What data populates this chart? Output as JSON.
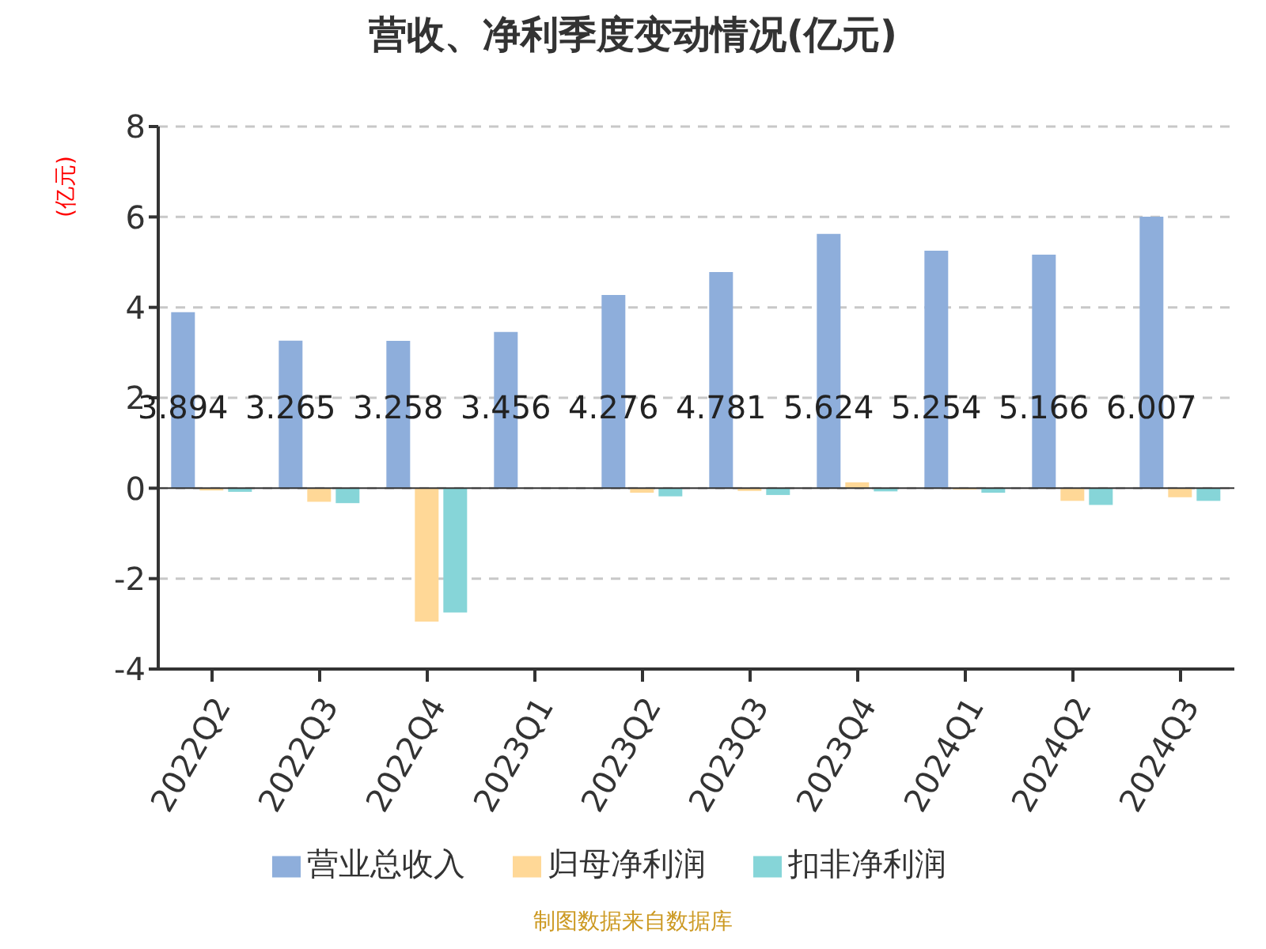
{
  "chart_data": {
    "type": "bar",
    "title": "营收、净利季度变动情况(亿元)",
    "ylabel": "(亿元)",
    "categories": [
      "2022Q2",
      "2022Q3",
      "2022Q4",
      "2023Q1",
      "2023Q2",
      "2023Q3",
      "2023Q4",
      "2024Q1",
      "2024Q2",
      "2024Q3"
    ],
    "series": [
      {
        "name": "营业总收入",
        "color": "#8eaedb",
        "values": [
          3.894,
          3.265,
          3.258,
          3.456,
          4.276,
          4.781,
          5.624,
          5.254,
          5.166,
          6.007
        ],
        "data_labels": true
      },
      {
        "name": "归母净利润",
        "color": "#ffd897",
        "values": [
          -0.05,
          -0.3,
          -2.95,
          null,
          -0.1,
          -0.06,
          0.13,
          -0.03,
          -0.28,
          -0.2
        ]
      },
      {
        "name": "扣非净利润",
        "color": "#86d5d8",
        "values": [
          -0.08,
          -0.33,
          -2.75,
          null,
          -0.18,
          -0.15,
          -0.07,
          -0.1,
          -0.37,
          -0.28
        ]
      }
    ],
    "ylim": [
      -4,
      8
    ],
    "yticks": [
      -4,
      -2,
      0,
      2,
      4,
      6,
      8
    ],
    "grid": "y",
    "legend": "bottom",
    "annotations": [
      "制图数据来自数据库"
    ]
  }
}
